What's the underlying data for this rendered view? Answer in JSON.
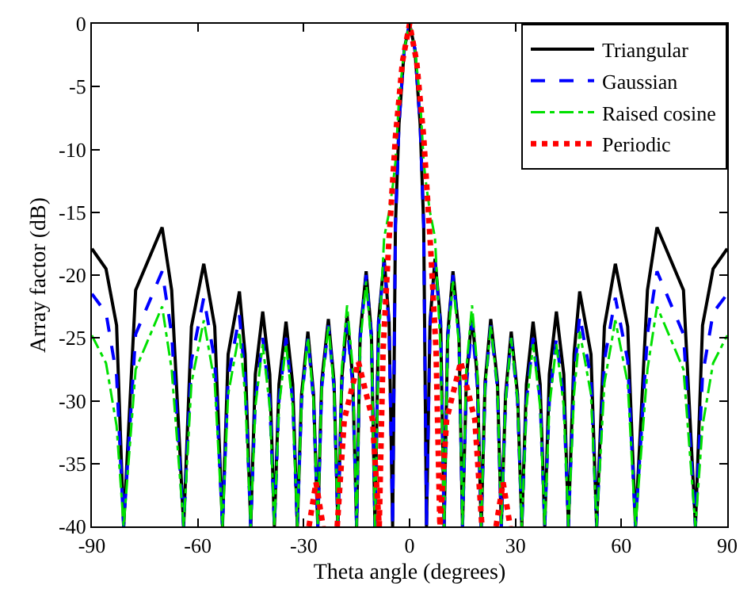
{
  "chart_data": {
    "type": "line",
    "xlabel": "Theta angle (degrees)",
    "ylabel": "Array factor (dB)",
    "xlim": [
      -90,
      90
    ],
    "xticks": [
      -90,
      -60,
      -30,
      0,
      30,
      60,
      90
    ],
    "ylim": [
      -40,
      0
    ],
    "yticks": [
      0,
      -5,
      -10,
      -15,
      -20,
      -25,
      -30,
      -35,
      -40
    ],
    "legend": "top right",
    "series": [
      {
        "name": "Triangular",
        "color": "#000000",
        "line_style": "solid",
        "x": [
          -90,
          -86,
          -83,
          -81,
          -77.6,
          -70.1,
          -67.4,
          -64,
          -61.8,
          -58.3,
          -55.2,
          -53,
          -51.4,
          -48.2,
          -46.6,
          -45,
          -43.7,
          -41.6,
          -39.6,
          -38.3,
          -37,
          -35,
          -33.1,
          -31.8,
          -30.6,
          -28.8,
          -27.2,
          -26,
          -24.9,
          -23,
          -21.4,
          -20.3,
          -19.2,
          -17.7,
          -16.1,
          -15,
          -14,
          -12.3,
          -10.8,
          -9.8,
          -8.8,
          -7.2,
          -5.8,
          -4.8,
          -4,
          -3,
          -1.5,
          0,
          1.5,
          3,
          4,
          4.8,
          5.8,
          7.2,
          8.8,
          9.8,
          10.8,
          12.3,
          14,
          15,
          16.1,
          17.7,
          19.2,
          20.3,
          21.4,
          23,
          24.9,
          26,
          27.2,
          28.8,
          30.6,
          31.8,
          33.1,
          35,
          37,
          38.3,
          39.6,
          41.6,
          43.7,
          45,
          46.6,
          48.2,
          51.4,
          53,
          55.2,
          58.3,
          61.8,
          64,
          67.4,
          70.1,
          77.6,
          81,
          83,
          86,
          90
        ],
        "values": [
          -17.9,
          -19.5,
          -24,
          -40,
          -21.2,
          -16.2,
          -21.2,
          -40,
          -24.1,
          -19.1,
          -24.1,
          -40,
          -26.3,
          -21.3,
          -26.3,
          -40,
          -27.9,
          -22.9,
          -27.9,
          -40,
          -28.7,
          -23.7,
          -28.7,
          -40,
          -29.5,
          -24.5,
          -29.5,
          -40,
          -28.5,
          -23.5,
          -28.5,
          -40,
          -28.2,
          -23.2,
          -28.2,
          -40,
          -24.7,
          -19.7,
          -24.7,
          -40,
          -23.7,
          -18.7,
          -23.7,
          -40,
          -16,
          -8,
          -2,
          0,
          -2,
          -8,
          -16,
          -40,
          -23.7,
          -18.7,
          -23.7,
          -40,
          -24.7,
          -19.7,
          -24.7,
          -40,
          -28.2,
          -23.2,
          -28.2,
          -40,
          -28.5,
          -23.5,
          -28.5,
          -40,
          -29.5,
          -24.5,
          -29.5,
          -40,
          -28.7,
          -23.7,
          -28.7,
          -40,
          -27.9,
          -22.9,
          -27.9,
          -40,
          -26.3,
          -21.3,
          -26.3,
          -40,
          -24.1,
          -19.1,
          -24.1,
          -40,
          -21.2,
          -16.2,
          -21.2,
          -40,
          -24,
          -19.5,
          -17.9
        ]
      },
      {
        "name": "Gaussian",
        "color": "#0000ff",
        "line_style": "dashed",
        "x": [
          -90,
          -86,
          -83,
          -81,
          -77.6,
          -70.1,
          -67.4,
          -64,
          -61.8,
          -58.3,
          -55.2,
          -53,
          -51.4,
          -48.2,
          -46.6,
          -45,
          -43.7,
          -41.6,
          -39.6,
          -38.3,
          -37,
          -35,
          -33.1,
          -31.8,
          -30.6,
          -28.8,
          -27.2,
          -26,
          -24.9,
          -23,
          -21.4,
          -20.3,
          -19.2,
          -17.7,
          -16.1,
          -15,
          -14,
          -12.3,
          -10.8,
          -9.8,
          -8.8,
          -7.2,
          -5.8,
          -4.8,
          -4,
          -3,
          -1.5,
          0,
          1.5,
          3,
          4,
          4.8,
          5.8,
          7.2,
          8.8,
          9.8,
          10.8,
          12.3,
          14,
          15,
          16.1,
          17.7,
          19.2,
          20.3,
          21.4,
          23,
          24.9,
          26,
          27.2,
          28.8,
          30.6,
          31.8,
          33.1,
          35,
          37,
          38.3,
          39.6,
          41.6,
          43.7,
          45,
          46.6,
          48.2,
          51.4,
          53,
          55.2,
          58.3,
          61.8,
          64,
          67.4,
          70.1,
          77.6,
          81,
          83,
          86,
          90
        ],
        "values": [
          -21.5,
          -23,
          -28,
          -40,
          -24.7,
          -19.7,
          -24.7,
          -40,
          -26.8,
          -21.8,
          -26.8,
          -40,
          -28.2,
          -23.2,
          -28.2,
          -40,
          -30,
          -25,
          -30,
          -40,
          -30,
          -25,
          -30,
          -40,
          -30,
          -25,
          -30,
          -40,
          -29,
          -24,
          -29,
          -40,
          -28.8,
          -23.8,
          -28.8,
          -40,
          -25,
          -20,
          -25,
          -40,
          -24,
          -19,
          -24,
          -40,
          -16,
          -8,
          -2,
          0,
          -2,
          -8,
          -16,
          -40,
          -24,
          -19,
          -24,
          -40,
          -25,
          -20,
          -25,
          -40,
          -28.8,
          -23.8,
          -28.8,
          -40,
          -29,
          -24,
          -29,
          -40,
          -30,
          -25,
          -30,
          -40,
          -30,
          -25,
          -30,
          -40,
          -30,
          -25,
          -30,
          -40,
          -28.2,
          -23.2,
          -28.2,
          -40,
          -26.8,
          -21.8,
          -26.8,
          -40,
          -24.7,
          -19.7,
          -24.7,
          -40,
          -28,
          -23,
          -21.5
        ]
      },
      {
        "name": "Raised cosine",
        "color": "#00e000",
        "line_style": "dashdot",
        "x": [
          -90,
          -86,
          -83,
          -81,
          -77.6,
          -70.1,
          -67.4,
          -64,
          -61.8,
          -58.3,
          -55.2,
          -53,
          -51.4,
          -48.2,
          -46.6,
          -45,
          -43.7,
          -41.6,
          -39.6,
          -38.3,
          -37,
          -35,
          -33.1,
          -31.8,
          -30.6,
          -28.8,
          -27.2,
          -26,
          -24.9,
          -23,
          -21.4,
          -20.3,
          -19.2,
          -17.7,
          -16.1,
          -15,
          -14,
          -12.3,
          -10.8,
          -9.8,
          -8.8,
          -7.2,
          -5.8,
          -4.8,
          -4,
          -3,
          -1.5,
          0,
          1.5,
          3,
          4,
          4.8,
          5.8,
          7.2,
          8.8,
          9.8,
          10.8,
          12.3,
          14,
          15,
          16.1,
          17.7,
          19.2,
          20.3,
          21.4,
          23,
          24.9,
          26,
          27.2,
          28.8,
          30.6,
          31.8,
          33.1,
          35,
          37,
          38.3,
          39.6,
          41.6,
          43.7,
          45,
          46.6,
          48.2,
          51.4,
          53,
          55.2,
          58.3,
          61.8,
          64,
          67.4,
          70.1,
          77.6,
          81,
          83,
          86,
          90
        ],
        "values": [
          -24.8,
          -27,
          -32,
          -40,
          -27.5,
          -22.5,
          -27.5,
          -40,
          -28.6,
          -23.6,
          -28.6,
          -40,
          -29.5,
          -24.5,
          -29.5,
          -40,
          -30.5,
          -25.5,
          -30.5,
          -40,
          -30.5,
          -25.5,
          -30.5,
          -40,
          -30,
          -25,
          -30,
          -40,
          -29,
          -24,
          -29,
          -40,
          -27.4,
          -22.4,
          -27.4,
          -40,
          -25.5,
          -20.5,
          -25.5,
          -40,
          -26,
          -17,
          -15,
          -13,
          -11,
          -6,
          -2,
          0,
          -2,
          -6,
          -11,
          -13,
          -15,
          -17,
          -26,
          -40,
          -25.5,
          -20.5,
          -25.5,
          -40,
          -27.4,
          -22.4,
          -27.4,
          -40,
          -29,
          -24,
          -29,
          -40,
          -30,
          -25,
          -30,
          -40,
          -30.5,
          -25.5,
          -30.5,
          -40,
          -30.5,
          -25.5,
          -30.5,
          -40,
          -29.5,
          -24.5,
          -29.5,
          -40,
          -28.6,
          -23.6,
          -28.6,
          -40,
          -27.5,
          -22.5,
          -27.5,
          -40,
          -32,
          -27,
          -24.8
        ]
      },
      {
        "name": "Periodic",
        "color": "#ff0000",
        "line_style": "dotted",
        "x": [
          -28.5,
          -26.5,
          -24.5,
          -22.5,
          -20.5,
          -18.5,
          -14.5,
          -10.5,
          -8.6,
          -7.5,
          -6,
          -4,
          -2,
          0,
          2,
          4,
          6,
          7.5,
          8.6,
          10.5,
          14.5,
          18.5,
          20.5,
          22.5,
          24.5,
          26.5,
          28.5
        ],
        "values": [
          -40,
          -36.5,
          -40,
          null,
          -40,
          -31.5,
          -26.9,
          -31.5,
          -40,
          -26,
          -18,
          -9,
          -3,
          0,
          -3,
          -9,
          -18,
          -26,
          -40,
          -31.5,
          -26.9,
          -31.5,
          -40,
          null,
          -40,
          -36.5,
          -40
        ]
      }
    ]
  }
}
